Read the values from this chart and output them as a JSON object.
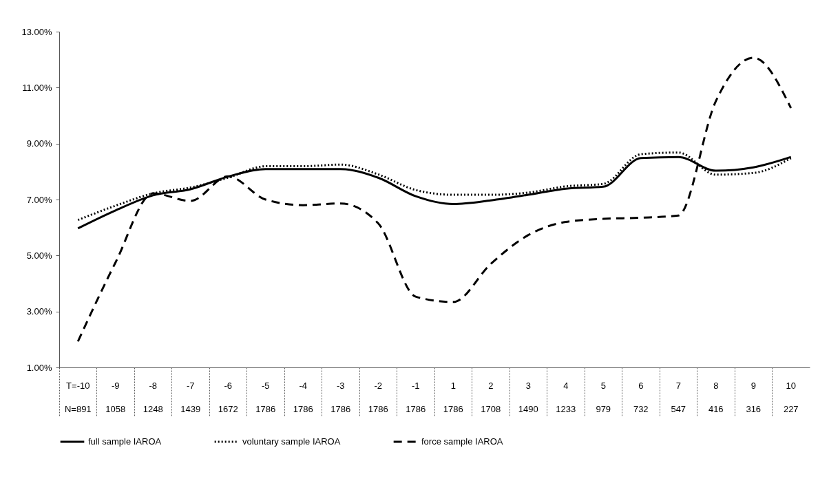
{
  "chart_data": {
    "type": "line",
    "categories": [
      "T=-10\nN=891",
      "-9\n1058",
      "-8\n1248",
      "-7\n1439",
      "-6\n1672",
      "-5\n1786",
      "-4\n1786",
      "-3\n1786",
      "-2\n1786",
      "-1\n1786",
      "1\n1786",
      "2\n1708",
      "3\n1490",
      "4\n1233",
      "5\n979",
      "6\n732",
      "7\n547",
      "8\n416",
      "9\n316",
      "10\n227"
    ],
    "series": [
      {
        "name": "full sample IAROA",
        "color": "#000000",
        "line_style": "solid",
        "values": [
          5.97,
          6.61,
          7.15,
          7.37,
          7.82,
          8.09,
          8.09,
          8.09,
          7.78,
          7.12,
          6.84,
          6.97,
          7.17,
          7.39,
          7.46,
          8.48,
          8.52,
          8.03,
          8.15,
          8.52
        ]
      },
      {
        "name": "voluntary sample IAROA",
        "color": "#000000",
        "line_style": "dotted",
        "values": [
          6.27,
          6.78,
          7.22,
          7.43,
          7.78,
          8.19,
          8.19,
          8.25,
          7.9,
          7.34,
          7.17,
          7.17,
          7.25,
          7.47,
          7.56,
          8.62,
          8.68,
          7.89,
          7.95,
          8.48
        ]
      },
      {
        "name": "force sample IAROA",
        "color": "#000000",
        "line_style": "dashed",
        "values": [
          1.93,
          4.75,
          7.22,
          6.95,
          7.83,
          7.0,
          6.8,
          6.86,
          6.15,
          3.53,
          3.34,
          4.7,
          5.73,
          6.2,
          6.31,
          6.35,
          6.43,
          10.52,
          12.07,
          10.27
        ]
      }
    ],
    "ylim": [
      1,
      13
    ],
    "yticks": [
      {
        "value": 1,
        "label": "1.00%"
      },
      {
        "value": 3,
        "label": "3.00%"
      },
      {
        "value": 5,
        "label": "5.00%"
      },
      {
        "value": 7,
        "label": "7.00%"
      },
      {
        "value": 9,
        "label": "9.00%"
      },
      {
        "value": 11,
        "label": "11.00%"
      },
      {
        "value": 13,
        "label": "13.00%"
      }
    ],
    "grid": false,
    "legend": "bottom",
    "marker": "none"
  }
}
